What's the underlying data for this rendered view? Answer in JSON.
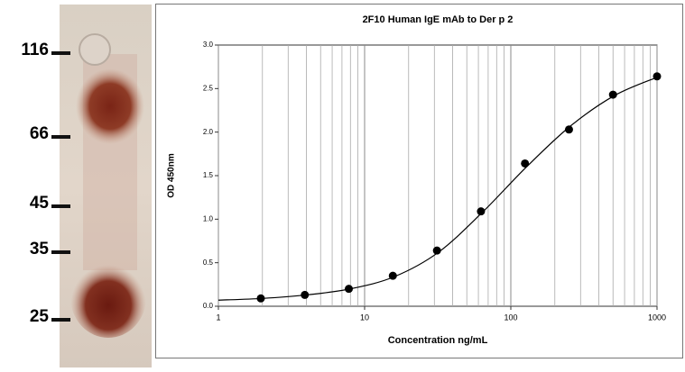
{
  "gel": {
    "markers": [
      "116",
      "66",
      "45",
      "35",
      "25"
    ]
  },
  "chart_data": {
    "type": "scatter",
    "title": "2F10 Human IgE mAb to Der p 2",
    "x_label": "Concentration ng/mL",
    "y_label": "OD 450nm",
    "x": [
      1.95,
      3.9,
      7.8,
      15.6,
      31.25,
      62.5,
      125,
      250,
      500,
      1000
    ],
    "series": [
      {
        "color": "#000000",
        "values": [
          0.09,
          0.13,
          0.2,
          0.35,
          0.64,
          1.09,
          1.64,
          2.03,
          2.43,
          2.64
        ]
      }
    ],
    "curve": {
      "color": "#000000",
      "x": [
        1,
        2,
        4,
        8,
        16,
        32,
        64,
        128,
        256,
        512,
        1000
      ],
      "values": [
        0.07,
        0.09,
        0.13,
        0.2,
        0.34,
        0.62,
        1.08,
        1.6,
        2.07,
        2.42,
        2.63
      ]
    },
    "x_log": true,
    "xlim": [
      1,
      1000
    ],
    "xticks": [
      1,
      10,
      100,
      1000
    ],
    "xminor": [
      2,
      3,
      4,
      5,
      6,
      7,
      8,
      9,
      20,
      30,
      40,
      50,
      60,
      70,
      80,
      90,
      200,
      300,
      400,
      500,
      600,
      700,
      800,
      900
    ],
    "ylim": [
      0,
      3
    ],
    "yticks": [
      {
        "value": 0,
        "label": "0.0"
      },
      0.5,
      {
        "value": 1,
        "label": "1.0"
      },
      1.5,
      {
        "value": 2,
        "label": "2.0"
      },
      2.5,
      {
        "value": 3,
        "label": "3.0"
      }
    ],
    "grid": "x"
  }
}
